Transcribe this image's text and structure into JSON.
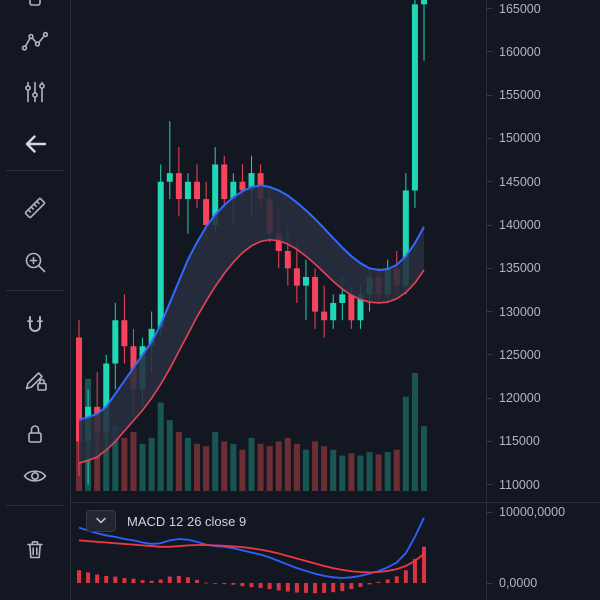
{
  "app": {
    "name": "trading-chart"
  },
  "toolbar": {
    "icons": [
      "clipped-tool-icon",
      "xabcd-pattern-icon",
      "sliders-icon",
      "arrow-left-icon",
      "ruler-icon",
      "zoom-in-icon",
      "magnet-icon",
      "pencil-lock-icon",
      "lock-icon",
      "eye-icon",
      "trash-icon"
    ]
  },
  "macd_panel": {
    "label": "MACD 12 26 close 9",
    "collapse_icon": "chevron-down-icon"
  },
  "colors": {
    "background": "#131722",
    "panel_border": "#2a2e39",
    "up": "#1fd6b5",
    "down": "#f5445c",
    "vol_up": "rgba(34,171,148,0.42)",
    "vol_down": "rgba(239,83,80,0.40)",
    "band_fill": "rgba(40,47,62,0.88)",
    "band_upper": "#2f6bff",
    "band_lower": "#e8425a",
    "macd_line": "#2962ff",
    "macd_signal": "#f23645",
    "macd_hist": "#f23645",
    "axis_text": "#b2b5be"
  },
  "chart_data": {
    "type": "candlestick",
    "y_axis": {
      "max": 166000,
      "min": 108000,
      "ticks": [
        "165000",
        "160000",
        "155000",
        "150000",
        "145000",
        "140000",
        "135000",
        "130000",
        "125000",
        "120000",
        "115000",
        "110000"
      ]
    },
    "candles": [
      [
        127000,
        129000,
        111000,
        115000
      ],
      [
        115000,
        121000,
        110000,
        119000
      ],
      [
        119000,
        123000,
        113000,
        116000
      ],
      [
        116000,
        125000,
        114000,
        124000
      ],
      [
        124000,
        131000,
        121000,
        129000
      ],
      [
        129000,
        132000,
        124000,
        126000
      ],
      [
        126000,
        128000,
        118000,
        121000
      ],
      [
        121000,
        127000,
        119000,
        126000
      ],
      [
        126000,
        130000,
        123000,
        128000
      ],
      [
        128000,
        147000,
        127000,
        145000
      ],
      [
        145000,
        152000,
        143000,
        146000
      ],
      [
        146000,
        149000,
        141000,
        143000
      ],
      [
        143000,
        146000,
        139000,
        145000
      ],
      [
        145000,
        147000,
        142000,
        143000
      ],
      [
        143000,
        145000,
        138000,
        140000
      ],
      [
        140000,
        149000,
        139000,
        147000
      ],
      [
        147000,
        148000,
        142000,
        143000
      ],
      [
        143000,
        146000,
        140000,
        145000
      ],
      [
        145000,
        147000,
        143000,
        144000
      ],
      [
        144000,
        148000,
        141000,
        146000
      ],
      [
        146000,
        147000,
        142000,
        143000
      ],
      [
        143000,
        144000,
        138000,
        139000
      ],
      [
        139000,
        142000,
        135000,
        137000
      ],
      [
        137000,
        140000,
        133000,
        135000
      ],
      [
        135000,
        138000,
        131000,
        133000
      ],
      [
        133000,
        136000,
        129000,
        134000
      ],
      [
        134000,
        135000,
        128000,
        130000
      ],
      [
        130000,
        133000,
        127000,
        129000
      ],
      [
        129000,
        132000,
        128000,
        131000
      ],
      [
        131000,
        134000,
        129000,
        132000
      ],
      [
        132000,
        133000,
        128000,
        129000
      ],
      [
        129000,
        133000,
        128000,
        132000
      ],
      [
        132000,
        135000,
        130000,
        134000
      ],
      [
        134000,
        135000,
        131000,
        132000
      ],
      [
        132000,
        136000,
        131000,
        135000
      ],
      [
        135000,
        137000,
        132000,
        133000
      ],
      [
        133000,
        146000,
        132000,
        144000
      ],
      [
        144000,
        166500,
        142000,
        165500
      ],
      [
        165500,
        167500,
        159000,
        166500
      ]
    ],
    "volume": [
      0.85,
      0.95,
      0.62,
      0.5,
      0.55,
      0.45,
      0.5,
      0.4,
      0.45,
      0.75,
      0.6,
      0.5,
      0.45,
      0.4,
      0.38,
      0.5,
      0.42,
      0.4,
      0.35,
      0.45,
      0.4,
      0.38,
      0.42,
      0.45,
      0.4,
      0.35,
      0.42,
      0.38,
      0.35,
      0.3,
      0.32,
      0.3,
      0.33,
      0.31,
      0.33,
      0.35,
      0.8,
      1.0,
      0.55
    ],
    "band": {
      "upper": [
        117500,
        117800,
        118200,
        119000,
        120500,
        122000,
        123500,
        125000,
        126500,
        128500,
        131000,
        133500,
        136000,
        138000,
        139800,
        141200,
        142300,
        143200,
        143900,
        144400,
        144600,
        144400,
        144000,
        143400,
        142600,
        141700,
        140700,
        139600,
        138500,
        137400,
        136400,
        135600,
        135000,
        134800,
        134900,
        135400,
        136400,
        137900,
        139800
      ],
      "lower": [
        112500,
        112800,
        113200,
        114000,
        115000,
        116200,
        117400,
        118600,
        120000,
        121600,
        123400,
        125400,
        127400,
        129400,
        131200,
        132900,
        134400,
        135700,
        136800,
        137600,
        138100,
        138300,
        138200,
        137800,
        137200,
        136400,
        135500,
        134500,
        133500,
        132600,
        131900,
        131400,
        131100,
        131000,
        131100,
        131500,
        132200,
        133300,
        134800
      ]
    },
    "macd": {
      "label": "MACD 12 26 close 9",
      "ticks": [
        {
          "value": 10000,
          "label": "10000,0000"
        },
        {
          "value": 0,
          "label": "0,0000"
        }
      ],
      "macd_line": [
        7800,
        7400,
        7000,
        6700,
        6500,
        6200,
        6000,
        5700,
        5500,
        5600,
        6000,
        6200,
        6100,
        5800,
        5400,
        5200,
        5100,
        4900,
        4600,
        4300,
        4000,
        3600,
        3100,
        2600,
        2100,
        1700,
        1300,
        1000,
        800,
        700,
        800,
        1000,
        1300,
        1700,
        2200,
        2900,
        4200,
        6500,
        9200
      ],
      "signal": [
        6000,
        5900,
        5800,
        5700,
        5600,
        5500,
        5400,
        5300,
        5200,
        5100,
        5100,
        5200,
        5300,
        5350,
        5350,
        5300,
        5250,
        5150,
        5050,
        4900,
        4700,
        4450,
        4150,
        3800,
        3450,
        3100,
        2750,
        2400,
        2100,
        1850,
        1650,
        1550,
        1500,
        1550,
        1700,
        1950,
        2400,
        3100,
        4100
      ],
      "hist": [
        1800,
        1500,
        1200,
        1000,
        900,
        700,
        600,
        400,
        300,
        500,
        900,
        1000,
        800,
        450,
        50,
        -100,
        -150,
        -250,
        -450,
        -600,
        -700,
        -850,
        -1050,
        -1200,
        -1350,
        -1400,
        -1450,
        -1400,
        -1300,
        -1150,
        -850,
        -550,
        -200,
        150,
        500,
        950,
        1800,
        3400,
        5100
      ]
    }
  }
}
